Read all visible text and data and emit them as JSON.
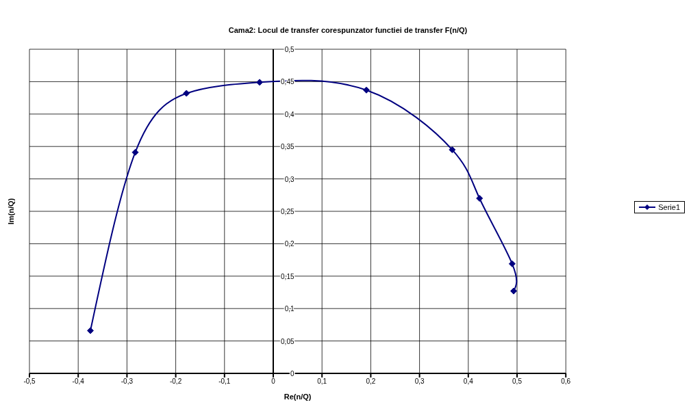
{
  "chart_data": {
    "type": "line",
    "title": "Cama2: Locul de transfer corespunzator functiei de transfer F(n/Q)",
    "xlabel": "Re(n/Q)",
    "ylabel": "Im(n/Q)",
    "x": [
      -0.375,
      -0.283,
      -0.178,
      -0.028,
      0.191,
      0.367,
      0.423,
      0.49,
      0.493
    ],
    "series": [
      {
        "name": "Serie1",
        "color": "#000080",
        "values": [
          0.066,
          0.341,
          0.432,
          0.449,
          0.437,
          0.345,
          0.27,
          0.169,
          0.127
        ]
      }
    ],
    "xlim": [
      -0.5,
      0.6
    ],
    "xticks": [
      {
        "value": -0.5,
        "label": "-0,5"
      },
      {
        "value": -0.4,
        "label": "-0,4"
      },
      {
        "value": -0.3,
        "label": "-0,3"
      },
      {
        "value": -0.2,
        "label": "-0,2"
      },
      {
        "value": -0.1,
        "label": "-0,1"
      },
      {
        "value": 0,
        "label": "0"
      },
      {
        "value": 0.1,
        "label": "0,1"
      },
      {
        "value": 0.2,
        "label": "0,2"
      },
      {
        "value": 0.3,
        "label": "0,3"
      },
      {
        "value": 0.4,
        "label": "0,4"
      },
      {
        "value": 0.5,
        "label": "0,5"
      },
      {
        "value": 0.6,
        "label": "0,6"
      }
    ],
    "ylim": [
      0,
      0.5
    ],
    "yticks": [
      {
        "value": 0,
        "label": "0"
      },
      {
        "value": 0.05,
        "label": "0,05"
      },
      {
        "value": 0.1,
        "label": "0,1"
      },
      {
        "value": 0.15,
        "label": "0,15"
      },
      {
        "value": 0.2,
        "label": "0,2"
      },
      {
        "value": 0.25,
        "label": "0,25"
      },
      {
        "value": 0.3,
        "label": "0,3"
      },
      {
        "value": 0.35,
        "label": "0,35"
      },
      {
        "value": 0.4,
        "label": "0,4"
      },
      {
        "value": 0.45,
        "label": "0,45"
      },
      {
        "value": 0.5,
        "label": "0,5"
      }
    ],
    "grid": true,
    "legend": "right",
    "marker": "diamond",
    "line_style": "solid"
  }
}
